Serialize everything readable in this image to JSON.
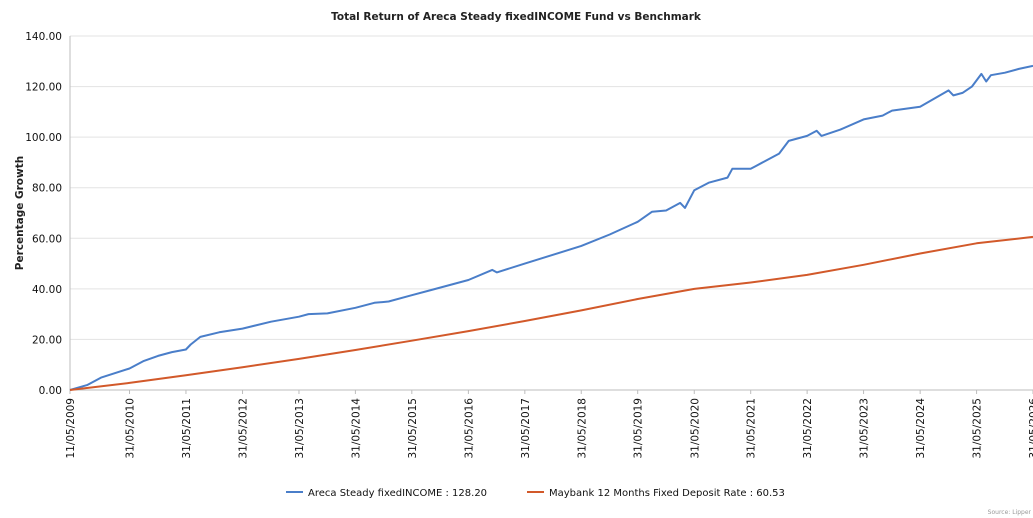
{
  "chart_data": {
    "type": "line",
    "title": "Total Return of Areca Steady fixedINCOME Fund vs Benchmark",
    "ylabel": "Percentage Growth",
    "xlabel": "",
    "ylim": [
      0,
      140
    ],
    "yticks": [
      "0.00",
      "20.00",
      "40.00",
      "60.00",
      "80.00",
      "100.00",
      "120.00",
      "140.00"
    ],
    "xlim": [
      "2009-05-11",
      "2026-05-31"
    ],
    "xticks": [
      {
        "date": "2009-05-11",
        "label": "11/05/2009"
      },
      {
        "date": "2010-05-31",
        "label": "31/05/2010"
      },
      {
        "date": "2011-05-31",
        "label": "31/05/2011"
      },
      {
        "date": "2012-05-31",
        "label": "31/05/2012"
      },
      {
        "date": "2013-05-31",
        "label": "31/05/2013"
      },
      {
        "date": "2014-05-31",
        "label": "31/05/2014"
      },
      {
        "date": "2015-05-31",
        "label": "31/05/2015"
      },
      {
        "date": "2016-05-31",
        "label": "31/05/2016"
      },
      {
        "date": "2017-05-31",
        "label": "31/05/2017"
      },
      {
        "date": "2018-05-31",
        "label": "31/05/2018"
      },
      {
        "date": "2019-05-31",
        "label": "31/05/2019"
      },
      {
        "date": "2020-05-31",
        "label": "31/05/2020"
      },
      {
        "date": "2021-05-31",
        "label": "31/05/2021"
      },
      {
        "date": "2022-05-31",
        "label": "31/05/2022"
      },
      {
        "date": "2023-05-31",
        "label": "31/05/2023"
      },
      {
        "date": "2024-05-31",
        "label": "31/05/2024"
      },
      {
        "date": "2025-05-31",
        "label": "31/05/2025"
      },
      {
        "date": "2026-05-31",
        "label": "31/05/2026"
      }
    ],
    "grid": true,
    "legend_position": "bottom",
    "series": [
      {
        "name": "Areca Steady fixedINCOME : 128.20",
        "color": "#4A7EC9",
        "points": [
          [
            "2009-05-11",
            0
          ],
          [
            "2009-09-01",
            2.0
          ],
          [
            "2009-12-01",
            5.0
          ],
          [
            "2010-05-31",
            8.5
          ],
          [
            "2010-09-01",
            11.5
          ],
          [
            "2010-12-01",
            13.5
          ],
          [
            "2011-03-01",
            15.0
          ],
          [
            "2011-05-31",
            16.0
          ],
          [
            "2011-07-01",
            18.0
          ],
          [
            "2011-09-01",
            21.0
          ],
          [
            "2012-01-01",
            22.8
          ],
          [
            "2012-05-31",
            24.3
          ],
          [
            "2012-12-01",
            27.0
          ],
          [
            "2013-05-31",
            29.0
          ],
          [
            "2013-08-01",
            30.0
          ],
          [
            "2013-12-01",
            30.3
          ],
          [
            "2014-05-31",
            32.5
          ],
          [
            "2014-10-01",
            34.5
          ],
          [
            "2015-01-01",
            35.0
          ],
          [
            "2015-05-31",
            37.5
          ],
          [
            "2015-10-01",
            39.5
          ],
          [
            "2016-05-31",
            43.5
          ],
          [
            "2016-11-01",
            47.5
          ],
          [
            "2016-12-01",
            46.5
          ],
          [
            "2017-05-31",
            50.0
          ],
          [
            "2017-12-01",
            53.5
          ],
          [
            "2018-05-31",
            57.0
          ],
          [
            "2018-12-01",
            61.5
          ],
          [
            "2019-05-31",
            66.5
          ],
          [
            "2019-09-01",
            70.5
          ],
          [
            "2019-12-01",
            71.0
          ],
          [
            "2020-03-01",
            74.0
          ],
          [
            "2020-04-01",
            72.0
          ],
          [
            "2020-05-31",
            79.0
          ],
          [
            "2020-09-01",
            82.0
          ],
          [
            "2021-01-01",
            84.0
          ],
          [
            "2021-02-01",
            87.5
          ],
          [
            "2021-05-31",
            87.5
          ],
          [
            "2021-07-01",
            88.5
          ],
          [
            "2021-12-01",
            93.5
          ],
          [
            "2022-02-01",
            98.5
          ],
          [
            "2022-05-31",
            100.5
          ],
          [
            "2022-08-01",
            102.5
          ],
          [
            "2022-09-01",
            100.5
          ],
          [
            "2023-01-01",
            103.0
          ],
          [
            "2023-05-31",
            107.0
          ],
          [
            "2023-10-01",
            108.5
          ],
          [
            "2023-12-01",
            110.5
          ],
          [
            "2024-05-31",
            112.0
          ],
          [
            "2024-12-01",
            118.5
          ],
          [
            "2025-01-01",
            116.5
          ],
          [
            "2025-03-01",
            117.5
          ],
          [
            "2025-05-01",
            120.0
          ],
          [
            "2025-07-01",
            125.0
          ],
          [
            "2025-08-01",
            122.0
          ],
          [
            "2025-09-01",
            124.5
          ],
          [
            "2025-12-01",
            125.5
          ],
          [
            "2026-03-01",
            127.0
          ],
          [
            "2026-05-31",
            128.2
          ]
        ]
      },
      {
        "name": "Maybank 12 Months Fixed Deposit Rate : 60.53",
        "color": "#D2592A",
        "points": [
          [
            "2009-05-11",
            0
          ],
          [
            "2010-05-31",
            2.8
          ],
          [
            "2011-05-31",
            5.8
          ],
          [
            "2012-05-31",
            9.0
          ],
          [
            "2013-05-31",
            12.3
          ],
          [
            "2014-05-31",
            15.8
          ],
          [
            "2015-05-31",
            19.5
          ],
          [
            "2016-05-31",
            23.3
          ],
          [
            "2017-05-31",
            27.3
          ],
          [
            "2018-05-31",
            31.5
          ],
          [
            "2019-05-31",
            36.0
          ],
          [
            "2020-05-31",
            40.0
          ],
          [
            "2021-05-31",
            42.5
          ],
          [
            "2022-05-31",
            45.5
          ],
          [
            "2023-05-31",
            49.5
          ],
          [
            "2024-05-31",
            54.0
          ],
          [
            "2025-05-31",
            58.0
          ],
          [
            "2026-05-31",
            60.53
          ]
        ]
      }
    ],
    "source": "Source: Lipper"
  }
}
